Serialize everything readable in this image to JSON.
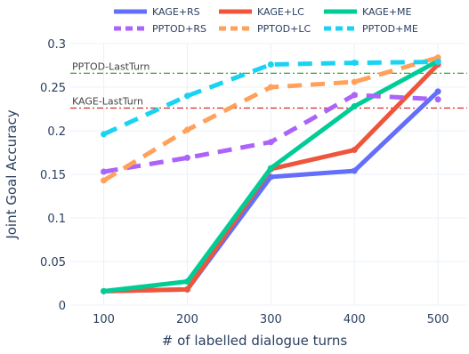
{
  "chart_data": {
    "type": "line",
    "xlabel": "# of labelled dialogue turns",
    "ylabel": "Joint Goal Accuracy",
    "x": [
      100,
      200,
      300,
      400,
      500
    ],
    "x_ticks": [
      "100",
      "200",
      "300",
      "400",
      "500"
    ],
    "xlim": [
      60,
      535
    ],
    "ylim": [
      0,
      0.3
    ],
    "y_ticks": [
      0,
      0.05,
      0.1,
      0.15,
      0.2,
      0.25,
      0.3
    ],
    "y_tick_labels": [
      "0",
      "0.05",
      "0.1",
      "0.15",
      "0.2",
      "0.25",
      "0.3"
    ],
    "grid": true,
    "legend_position": "top",
    "series": [
      {
        "name": "KAGE+RS",
        "color": "#636efa",
        "dash": "solid",
        "values": [
          0.016,
          0.018,
          0.147,
          0.154,
          0.245
        ]
      },
      {
        "name": "KAGE+LC",
        "color": "#ef553b",
        "dash": "solid",
        "values": [
          0.016,
          0.018,
          0.156,
          0.178,
          0.276
        ]
      },
      {
        "name": "KAGE+ME",
        "color": "#00cc96",
        "dash": "solid",
        "values": [
          0.016,
          0.027,
          0.157,
          0.228,
          0.28
        ]
      },
      {
        "name": "PPTOD+RS",
        "color": "#ab63fa",
        "dash": "dash",
        "values": [
          0.153,
          0.169,
          0.187,
          0.241,
          0.236
        ]
      },
      {
        "name": "PPTOD+LC",
        "color": "#ffa15a",
        "dash": "dash",
        "values": [
          0.143,
          0.201,
          0.25,
          0.256,
          0.284
        ]
      },
      {
        "name": "PPTOD+ME",
        "color": "#19d3f3",
        "dash": "dash",
        "values": [
          0.196,
          0.24,
          0.276,
          0.278,
          0.279
        ]
      }
    ],
    "reference_lines": [
      {
        "label": "PPTOD-LastTurn",
        "value": 0.266,
        "color": "#1a9e1a"
      },
      {
        "label": "KAGE-LastTurn",
        "value": 0.226,
        "color": "#d62728"
      }
    ]
  }
}
